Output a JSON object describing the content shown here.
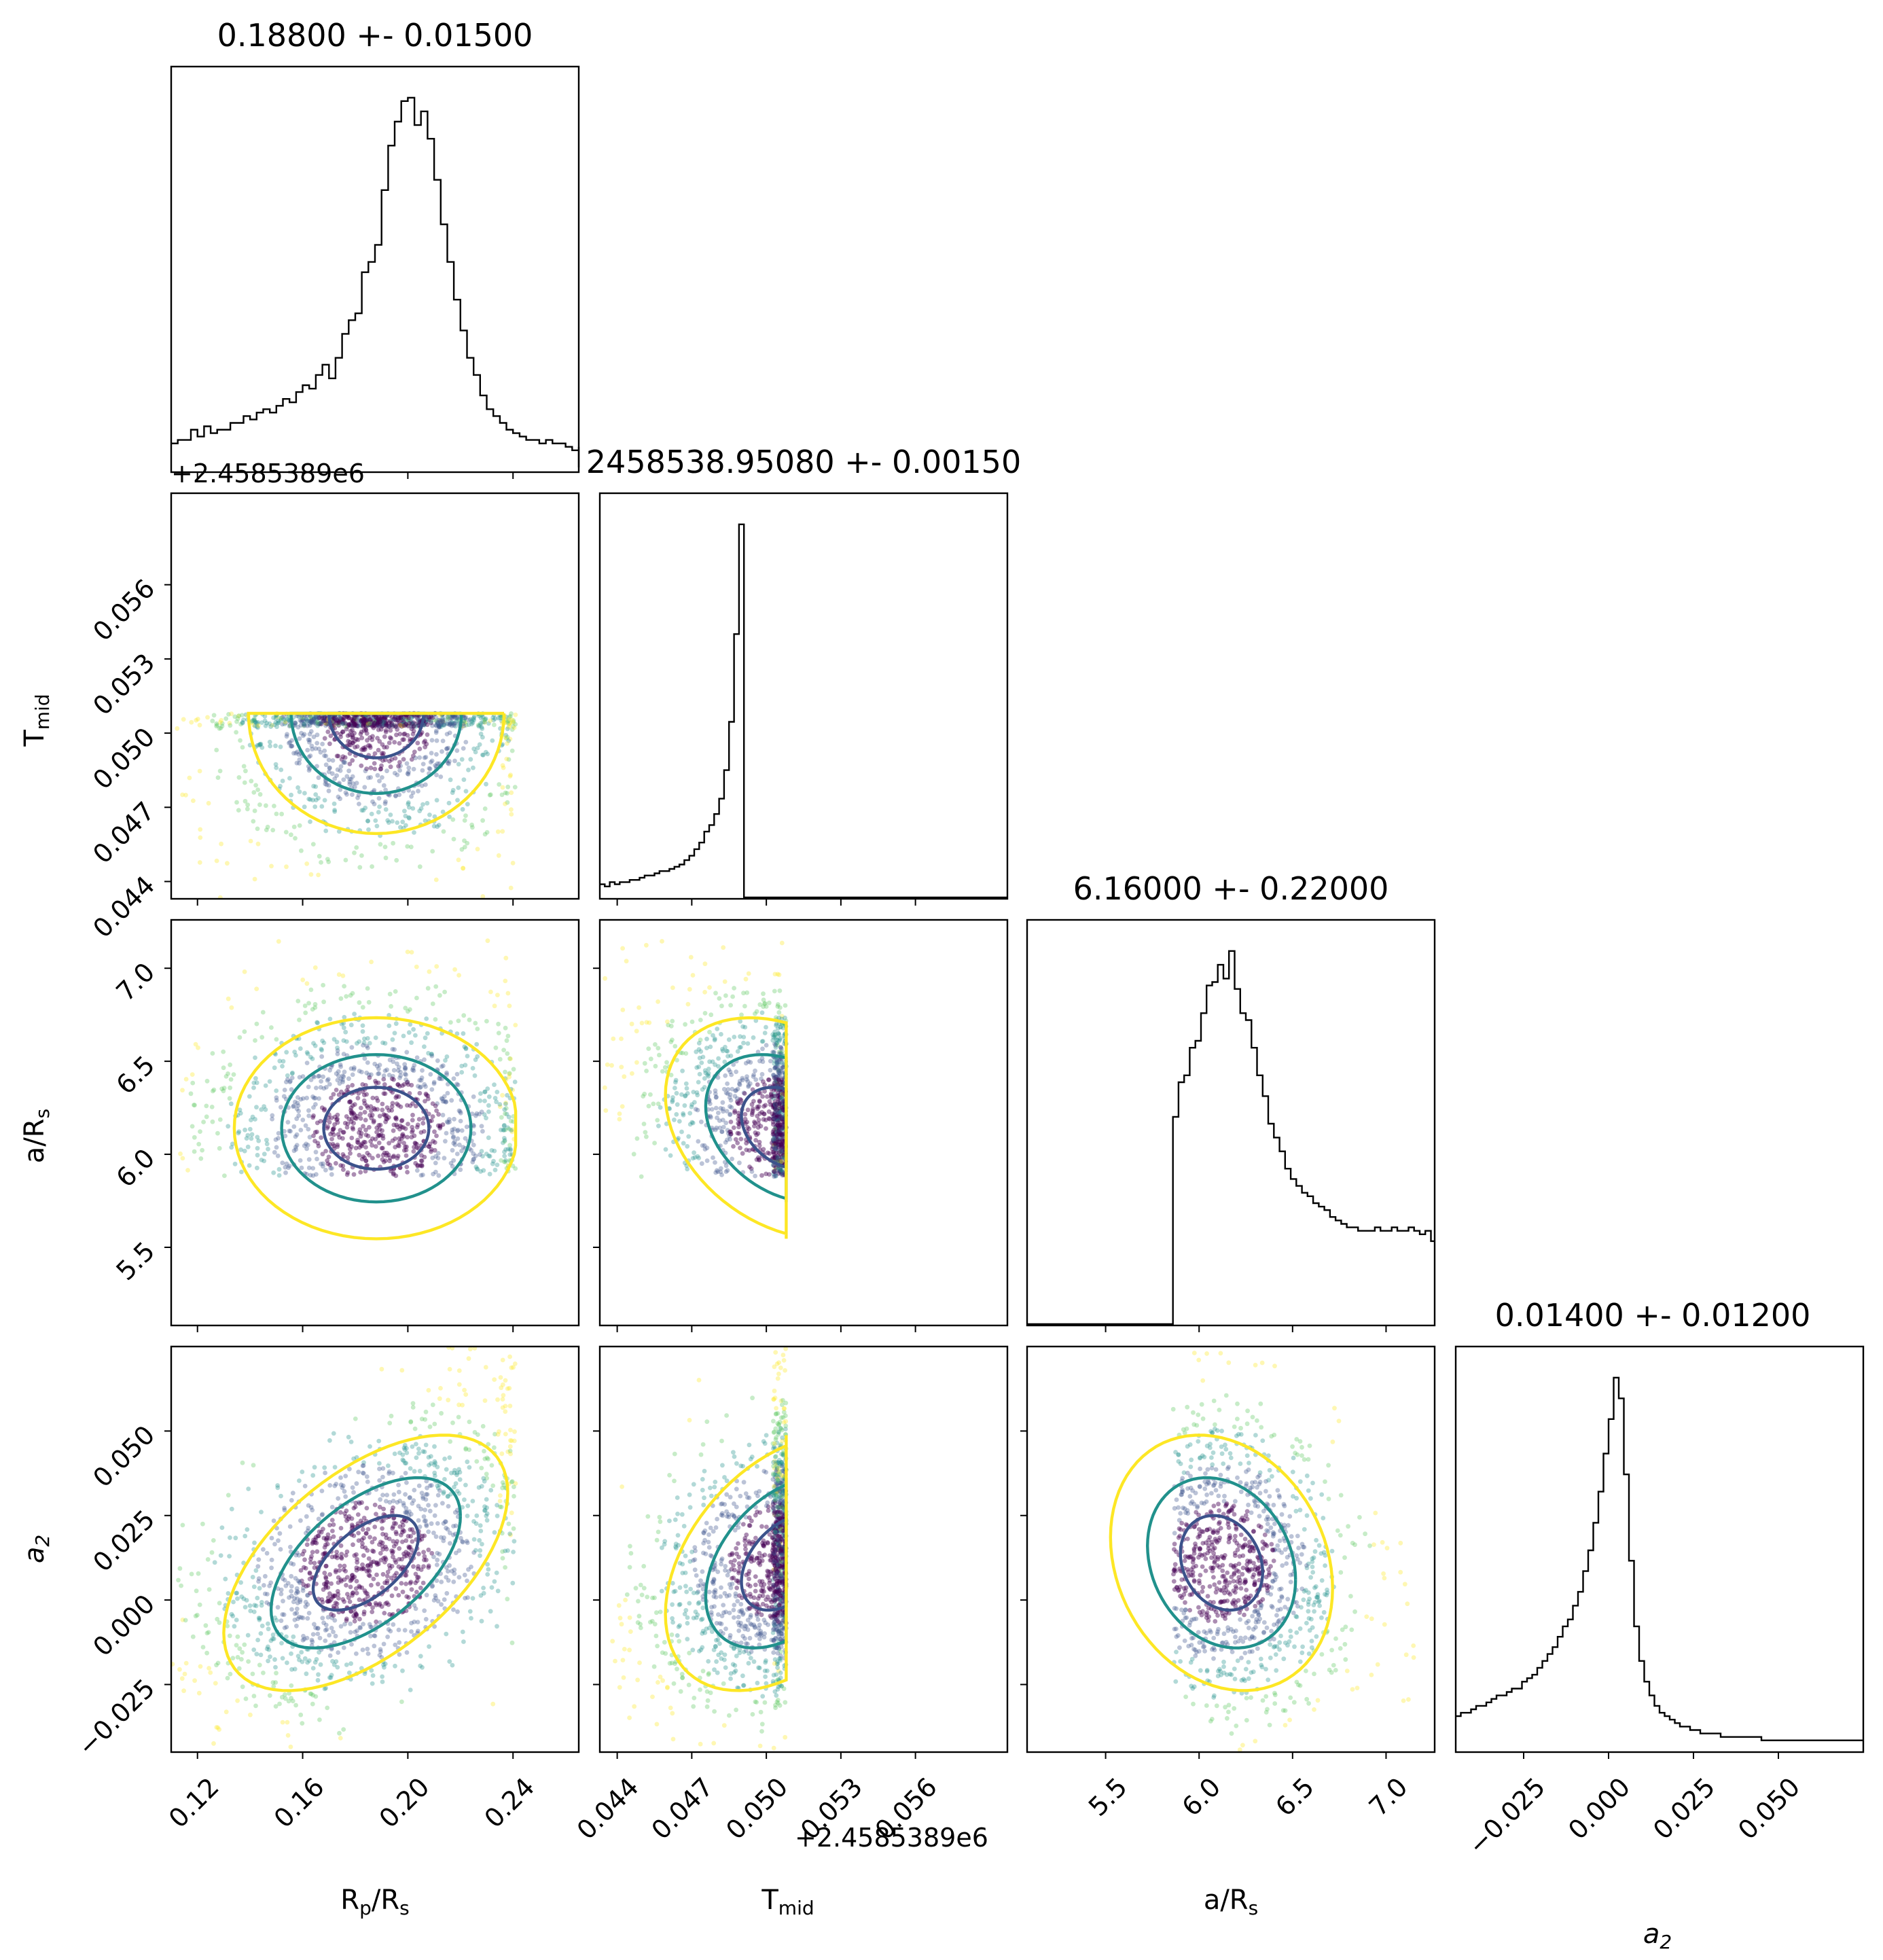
{
  "chart_data": {
    "type": "corner",
    "parameters": [
      {
        "key": "rp",
        "label_main": "R",
        "label_sub": "p",
        "label_tail": "/R",
        "label_sub2": "s"
      },
      {
        "key": "tmid",
        "label_main": "T",
        "label_sub": "mid",
        "label_tail": "",
        "label_sub2": ""
      },
      {
        "key": "ars",
        "label_main": "a/R",
        "label_sub": "s",
        "label_tail": "",
        "label_sub2": ""
      },
      {
        "key": "a2",
        "label_main": "a",
        "label_sub": "2",
        "label_tail": "",
        "label_sub2": "",
        "italic": true
      }
    ],
    "titles": [
      "0.18800 +- 0.01500",
      "2458538.95080 +- 0.00150",
      "6.16000 +- 0.22000",
      "0.01400 +- 0.01200"
    ],
    "offset_label": "+2.4585389e6",
    "axes": {
      "rp": {
        "range": [
          0.11,
          0.265
        ],
        "ticks": [
          0.12,
          0.16,
          0.2,
          0.24
        ],
        "tick_labels": [
          "0.12",
          "0.16",
          "0.20",
          "0.24"
        ]
      },
      "tmid": {
        "range": [
          0.0433,
          0.0597
        ],
        "ticks": [
          0.044,
          0.047,
          0.05,
          0.053,
          0.056
        ],
        "tick_labels": [
          "0.044",
          "0.047",
          "0.050",
          "0.053",
          "0.056"
        ]
      },
      "ars": {
        "range": [
          5.08,
          7.26
        ],
        "ticks": [
          5.5,
          6.0,
          6.5,
          7.0
        ],
        "tick_labels": [
          "5.5",
          "6.0",
          "6.5",
          "7.0"
        ]
      },
      "a2": {
        "range": [
          -0.045,
          0.075
        ],
        "ticks": [
          -0.025,
          0.0,
          0.025,
          0.05
        ],
        "tick_labels": [
          "−0.025",
          "0.000",
          "0.025",
          "0.050"
        ]
      }
    },
    "marginals": {
      "rp": {
        "bin_start": 0.11,
        "bin_width": 0.0025,
        "counts": [
          8,
          9,
          9,
          12,
          10,
          13,
          11,
          12,
          12,
          14,
          14,
          16,
          15,
          17,
          18,
          17,
          19,
          21,
          20,
          23,
          25,
          24,
          28,
          31,
          27,
          33,
          40,
          44,
          46,
          58,
          61,
          66,
          82,
          95,
          102,
          108,
          109,
          101,
          105,
          97,
          85,
          72,
          61,
          50,
          41,
          33,
          28,
          22,
          18,
          16,
          14,
          12,
          11,
          10,
          9,
          9,
          8,
          9,
          8,
          8,
          7,
          6,
          7,
          5,
          4,
          3,
          1,
          1,
          1,
          1,
          1,
          1
        ]
      },
      "tmid": {
        "bin_start": 0.0433,
        "bin_width": 0.0002,
        "counts": [
          6,
          5,
          7,
          6,
          7,
          7,
          8,
          8,
          9,
          10,
          10,
          11,
          12,
          12,
          13,
          14,
          15,
          17,
          19,
          22,
          25,
          30,
          33,
          38,
          45,
          58,
          80,
          120,
          170,
          0,
          0,
          0,
          0,
          0,
          0,
          0,
          0,
          0,
          0,
          0,
          0,
          0,
          0,
          0,
          0,
          0,
          0,
          0,
          0,
          0,
          0,
          0,
          0,
          0,
          0,
          0,
          0,
          0,
          0,
          0,
          0,
          0,
          0,
          0,
          0,
          0,
          0,
          0,
          0,
          0,
          0,
          0,
          0,
          0,
          0,
          0,
          0,
          0,
          0,
          0,
          0,
          0,
          0
        ]
      },
      "ars": {
        "bin_start": 5.08,
        "bin_width": 0.03,
        "counts": [
          0,
          0,
          0,
          0,
          0,
          0,
          0,
          0,
          0,
          0,
          0,
          0,
          0,
          0,
          0,
          0,
          0,
          0,
          0,
          0,
          0,
          0,
          0,
          0,
          0,
          0,
          60,
          70,
          72,
          80,
          82,
          90,
          98,
          99,
          104,
          100,
          108,
          97,
          90,
          88,
          80,
          72,
          66,
          58,
          54,
          50,
          45,
          42,
          40,
          38,
          37,
          35,
          34,
          33,
          31,
          30,
          29,
          28,
          28,
          27,
          27,
          27,
          28,
          27,
          27,
          28,
          27,
          27,
          28,
          27,
          26,
          27,
          24
        ]
      },
      "a2": {
        "bin_start": -0.045,
        "bin_width": 0.0015,
        "counts": [
          10,
          11,
          11,
          12,
          13,
          13,
          14,
          15,
          16,
          16,
          17,
          18,
          18,
          20,
          21,
          22,
          24,
          26,
          28,
          30,
          33,
          36,
          38,
          42,
          46,
          52,
          58,
          66,
          75,
          86,
          96,
          108,
          102,
          80,
          55,
          36,
          26,
          20,
          16,
          13,
          11,
          10,
          9,
          8,
          7,
          7,
          6,
          6,
          5,
          5,
          5,
          5,
          4,
          4,
          4,
          4,
          4,
          4,
          4,
          4,
          3,
          3,
          3,
          3,
          3,
          3,
          3,
          3,
          3,
          3,
          3,
          3,
          3,
          3,
          3,
          3,
          3,
          3,
          3,
          3
        ]
      }
    },
    "joint": {
      "rp_tmid": {
        "x": "rp",
        "y": "tmid",
        "mean": [
          0.188,
          0.0508
        ],
        "sd": [
          0.018,
          0.0018
        ],
        "rho": 0.0,
        "clip_x": [
          0.11,
          0.241
        ],
        "clip_y": [
          0.0433,
          0.0508
        ]
      },
      "rp_ars": {
        "x": "rp",
        "y": "ars",
        "mean": [
          0.188,
          6.14
        ],
        "sd": [
          0.02,
          0.22
        ],
        "rho": 0.0,
        "clip_x": [
          0.11,
          0.241
        ],
        "clip_y": [
          5.88,
          7.15
        ]
      },
      "rp_a2": {
        "x": "rp",
        "y": "a2",
        "mean": [
          0.184,
          0.011
        ],
        "sd": [
          0.02,
          0.014
        ],
        "rho": 0.55,
        "clip_x": [
          0.11,
          0.241
        ],
        "clip_y": [
          -0.045,
          0.075
        ]
      },
      "tmid_ars": {
        "x": "tmid",
        "y": "ars",
        "mean": [
          0.0508,
          6.14
        ],
        "sd": [
          0.0018,
          0.22
        ],
        "rho": -0.3,
        "clip_x": [
          0.0433,
          0.0508
        ],
        "clip_y": [
          5.88,
          7.15
        ]
      },
      "tmid_a2": {
        "x": "tmid",
        "y": "a2",
        "mean": [
          0.0508,
          0.011
        ],
        "sd": [
          0.0018,
          0.014
        ],
        "rho": 0.4,
        "clip_x": [
          0.0433,
          0.0508
        ],
        "clip_y": [
          -0.045,
          0.075
        ]
      },
      "ars_a2": {
        "x": "ars",
        "y": "a2",
        "mean": [
          6.12,
          0.011
        ],
        "sd": [
          0.22,
          0.014
        ],
        "rho": -0.2,
        "clip_x": [
          5.86,
          7.15
        ],
        "clip_y": [
          -0.045,
          0.075
        ]
      }
    },
    "contour_colors": [
      "#3b528b",
      "#21918c",
      "#fde725"
    ],
    "point_colors": [
      "#440154",
      "#3b528b",
      "#21918c",
      "#5ec962",
      "#fde725"
    ],
    "grid": false
  }
}
